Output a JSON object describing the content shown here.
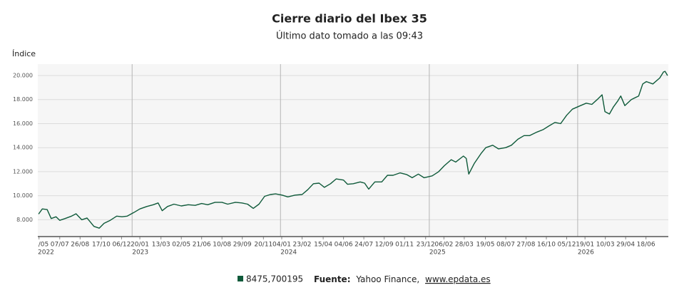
{
  "chart_data": {
    "type": "line",
    "title": "Cierre diario del Ibex 35",
    "subtitle": "Último dato tomado a las 09:43",
    "y_label": "Índice",
    "x": [
      "2022-05-16",
      "2022-05-25",
      "2022-06-06",
      "2022-06-16",
      "2022-06-28",
      "2022-07-07",
      "2022-07-20",
      "2022-08-05",
      "2022-08-16",
      "2022-08-30",
      "2022-09-12",
      "2022-09-29",
      "2022-10-12",
      "2022-10-24",
      "2022-11-08",
      "2022-11-24",
      "2022-12-07",
      "2022-12-20",
      "2023-01-05",
      "2023-01-20",
      "2023-02-06",
      "2023-02-22",
      "2023-03-06",
      "2023-03-16",
      "2023-03-29",
      "2023-04-14",
      "2023-05-02",
      "2023-05-19",
      "2023-06-05",
      "2023-06-21",
      "2023-07-06",
      "2023-07-24",
      "2023-08-10",
      "2023-08-24",
      "2023-09-12",
      "2023-09-28",
      "2023-10-12",
      "2023-10-26",
      "2023-11-09",
      "2023-11-23",
      "2023-12-07",
      "2023-12-20",
      "2024-01-05",
      "2024-01-19",
      "2024-02-06",
      "2024-02-23",
      "2024-03-08",
      "2024-03-22",
      "2024-04-05",
      "2024-04-18",
      "2024-05-03",
      "2024-05-17",
      "2024-06-04",
      "2024-06-14",
      "2024-06-28",
      "2024-07-15",
      "2024-07-26",
      "2024-08-05",
      "2024-08-20",
      "2024-09-06",
      "2024-09-20",
      "2024-10-04",
      "2024-10-21",
      "2024-11-07",
      "2024-11-20",
      "2024-12-05",
      "2024-12-19",
      "2025-01-08",
      "2025-01-24",
      "2025-02-07",
      "2025-02-24",
      "2025-03-07",
      "2025-03-26",
      "2025-04-02",
      "2025-04-08",
      "2025-04-22",
      "2025-05-08",
      "2025-05-20",
      "2025-06-06",
      "2025-06-20",
      "2025-07-08",
      "2025-07-22",
      "2025-08-07",
      "2025-08-22",
      "2025-09-05",
      "2025-09-23",
      "2025-10-08",
      "2025-10-22",
      "2025-11-06",
      "2025-11-20",
      "2025-12-05",
      "2025-12-19",
      "2026-01-08",
      "2026-01-22",
      "2026-02-05",
      "2026-02-18",
      "2026-03-02",
      "2026-03-09",
      "2026-03-20",
      "2026-03-30",
      "2026-04-10",
      "2026-04-17",
      "2026-04-27",
      "2026-05-13",
      "2026-05-31",
      "2026-06-10",
      "2026-06-19",
      "2026-07-05",
      "2026-07-22",
      "2026-07-31",
      "2026-08-04",
      "2026-08-10"
    ],
    "series": [
      {
        "name": "8475,700195",
        "color": "#0f5a3a",
        "values": [
          8476,
          8900,
          8850,
          8100,
          8250,
          7950,
          8100,
          8300,
          8500,
          8000,
          8150,
          7450,
          7300,
          7700,
          7950,
          8300,
          8250,
          8300,
          8600,
          8900,
          9100,
          9250,
          9400,
          8750,
          9100,
          9300,
          9150,
          9250,
          9200,
          9350,
          9250,
          9450,
          9450,
          9300,
          9450,
          9400,
          9300,
          8950,
          9300,
          9950,
          10100,
          10150,
          10050,
          9900,
          10050,
          10100,
          10500,
          11000,
          11050,
          10700,
          11000,
          11400,
          11300,
          10950,
          11000,
          11150,
          11050,
          10550,
          11150,
          11150,
          11700,
          11700,
          11900,
          11750,
          11500,
          11800,
          11500,
          11650,
          12000,
          12500,
          13000,
          12800,
          13300,
          13100,
          11800,
          12700,
          13500,
          14000,
          14200,
          13900,
          14000,
          14200,
          14700,
          15000,
          15000,
          15300,
          15500,
          15800,
          16100,
          16000,
          16700,
          17200,
          17500,
          17700,
          17600,
          18000,
          18400,
          17000,
          16800,
          17400,
          17900,
          18300,
          17500,
          18000,
          18300,
          19300,
          19500,
          19300,
          19800,
          20300,
          20350,
          20000
        ]
      }
    ],
    "xlim": [
      "2022-05-14",
      "2026-08-12"
    ],
    "xticks": [
      {
        "value": "2022-05-17",
        "label": "/05"
      },
      {
        "value": "2022-07-07",
        "label": "07/07"
      },
      {
        "value": "2022-08-26",
        "label": "26/08"
      },
      {
        "value": "2022-10-17",
        "label": "17/10"
      },
      {
        "value": "2022-12-06",
        "label": "06/12"
      },
      {
        "value": "2023-01-20",
        "label": "20/01"
      },
      {
        "value": "2023-03-13",
        "label": "13/03"
      },
      {
        "value": "2023-05-02",
        "label": "02/05"
      },
      {
        "value": "2023-06-21",
        "label": "21/06"
      },
      {
        "value": "2023-08-10",
        "label": "10/08"
      },
      {
        "value": "2023-09-29",
        "label": "29/09"
      },
      {
        "value": "2023-11-20",
        "label": "20/11"
      },
      {
        "value": "2024-01-04",
        "label": "04/01"
      },
      {
        "value": "2024-02-23",
        "label": "23/02"
      },
      {
        "value": "2024-04-15",
        "label": "15/04"
      },
      {
        "value": "2024-06-04",
        "label": "04/06"
      },
      {
        "value": "2024-07-24",
        "label": "24/07"
      },
      {
        "value": "2024-09-12",
        "label": "12/09"
      },
      {
        "value": "2024-11-01",
        "label": "01/11"
      },
      {
        "value": "2024-12-23",
        "label": "23/12"
      },
      {
        "value": "2025-02-06",
        "label": "06/02"
      },
      {
        "value": "2025-03-28",
        "label": "28/03"
      },
      {
        "value": "2025-05-19",
        "label": "19/05"
      },
      {
        "value": "2025-07-08",
        "label": "08/07"
      },
      {
        "value": "2025-08-27",
        "label": "27/08"
      },
      {
        "value": "2025-10-16",
        "label": "16/10"
      },
      {
        "value": "2025-12-05",
        "label": "05/12"
      },
      {
        "value": "2026-01-19",
        "label": "19/01"
      },
      {
        "value": "2026-03-10",
        "label": "10/03"
      },
      {
        "value": "2026-04-29",
        "label": "29/04"
      },
      {
        "value": "2026-06-18",
        "label": "18/06"
      }
    ],
    "years": [
      2022,
      2023,
      2024,
      2025,
      2026
    ],
    "ylim": [
      6600,
      20950
    ],
    "yticks": [
      {
        "value": 8000,
        "label": "8.000"
      },
      {
        "value": 10000,
        "label": "10.000"
      },
      {
        "value": 12000,
        "label": "12.000"
      },
      {
        "value": 14000,
        "label": "14.000"
      },
      {
        "value": 16000,
        "label": "16.000"
      },
      {
        "value": 18000,
        "label": "18.000"
      },
      {
        "value": 20000,
        "label": "20.000"
      }
    ],
    "grid": true,
    "source": {
      "label": "Fuente:",
      "text": "Yahoo Finance,",
      "link": "www.epdata.es"
    }
  }
}
